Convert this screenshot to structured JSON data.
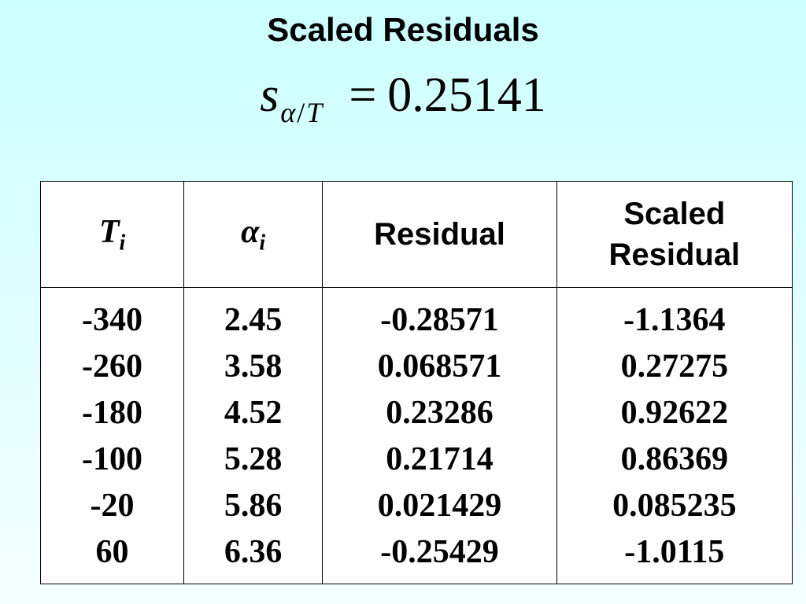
{
  "title": "Scaled Residuals",
  "formula": {
    "symbol": "s",
    "subscript_alpha": "α",
    "subscript_slash": "/",
    "subscript_T": "T",
    "equals": "=",
    "value": "0.25141"
  },
  "table": {
    "headers": {
      "t_symbol": "T",
      "t_sub": "i",
      "alpha_symbol": "α",
      "alpha_sub": "i",
      "residual": "Residual",
      "scaled_line1": "Scaled",
      "scaled_line2": "Residual"
    },
    "columns": {
      "T": [
        "-340",
        "-260",
        "-180",
        "-100",
        "-20",
        "60"
      ],
      "alpha": [
        "2.45",
        "3.58",
        "4.52",
        "5.28",
        "5.86",
        "6.36"
      ],
      "residual": [
        "-0.28571",
        "0.068571",
        "0.23286",
        "0.21714",
        "0.021429",
        "-0.25429"
      ],
      "scaled_residual": [
        "-1.1364",
        "0.27275",
        "0.92622",
        "0.86369",
        "0.085235",
        "-1.0115"
      ]
    }
  }
}
